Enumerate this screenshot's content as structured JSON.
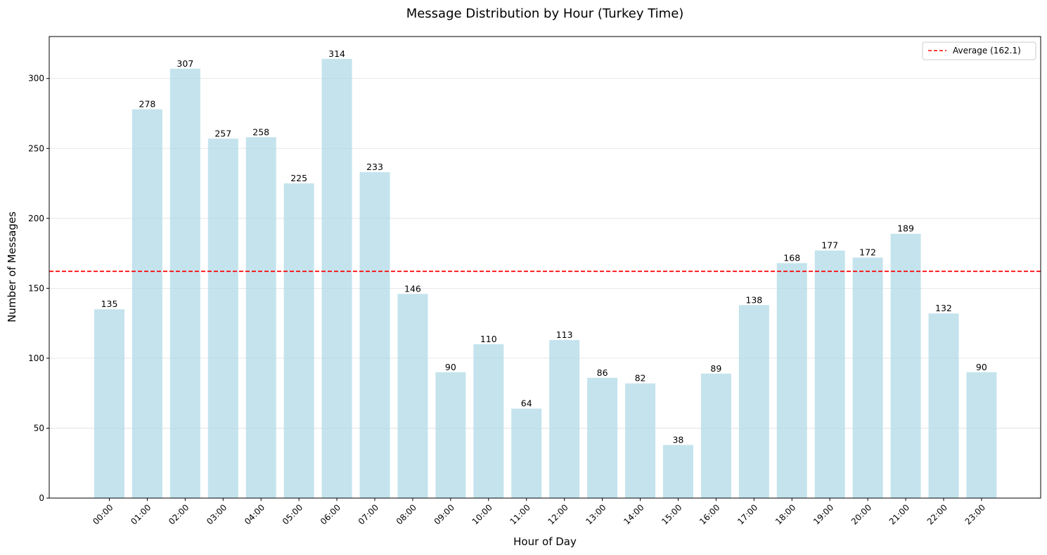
{
  "chart_data": {
    "type": "bar",
    "title": "Message Distribution by Hour (Turkey Time)",
    "xlabel": "Hour of Day",
    "ylabel": "Number of Messages",
    "categories": [
      "00:00",
      "01:00",
      "02:00",
      "03:00",
      "04:00",
      "05:00",
      "06:00",
      "07:00",
      "08:00",
      "09:00",
      "10:00",
      "11:00",
      "12:00",
      "13:00",
      "14:00",
      "15:00",
      "16:00",
      "17:00",
      "18:00",
      "19:00",
      "20:00",
      "21:00",
      "22:00",
      "23:00"
    ],
    "values": [
      135,
      278,
      307,
      257,
      258,
      225,
      314,
      233,
      146,
      90,
      110,
      64,
      113,
      86,
      82,
      38,
      89,
      138,
      168,
      177,
      172,
      189,
      132,
      90
    ],
    "ylim": [
      0,
      330
    ],
    "yticks": [
      0,
      50,
      100,
      150,
      200,
      250,
      300
    ],
    "grid": "horizontal",
    "bar_color": "#add8e6",
    "average": {
      "value": 162.1,
      "label": "Average (162.1)",
      "color": "#ff0000",
      "style": "dashed"
    },
    "legend": {
      "location": "upper right",
      "entries": [
        "Average (162.1)"
      ]
    }
  }
}
